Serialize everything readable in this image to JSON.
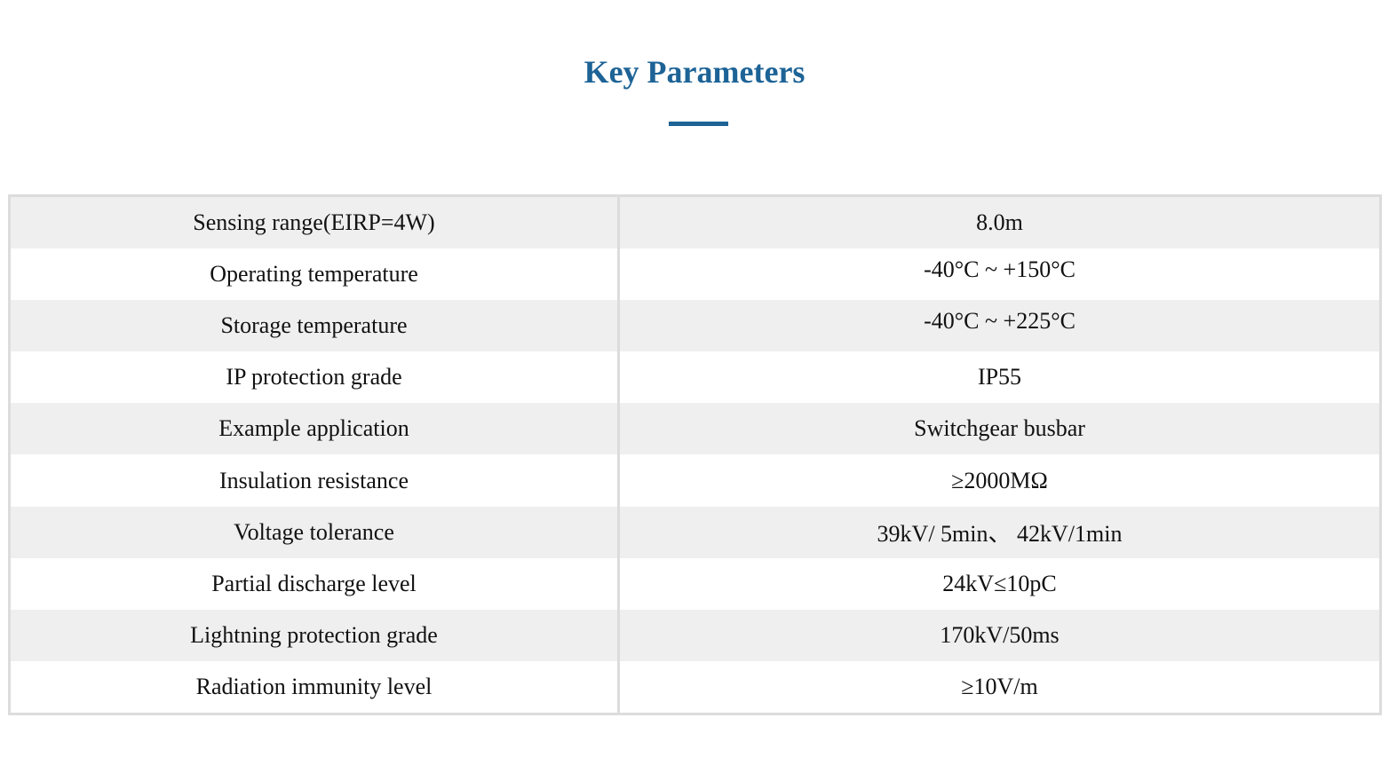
{
  "header": {
    "title": "Key Parameters",
    "accent_color": "#1d6396"
  },
  "table": {
    "border_color": "#dcdcdc",
    "stripe_color": "#efefef",
    "rows": [
      {
        "label": "Sensing range(EIRP=4W)",
        "value": "8.0m"
      },
      {
        "label": "Operating temperature",
        "value": "-40°C ~ +150°C"
      },
      {
        "label": "Storage temperature",
        "value": "-40°C ~ +225°C"
      },
      {
        "label": "IP protection grade",
        "value": "IP55"
      },
      {
        "label": "Example application",
        "value": "Switchgear busbar"
      },
      {
        "label": "Insulation resistance",
        "value": "≥2000ΜΩ"
      },
      {
        "label": "Voltage tolerance",
        "value": "39kV/ 5min、 42kV/1min"
      },
      {
        "label": "Partial discharge level",
        "value": "24kV≤10pC"
      },
      {
        "label": "Lightning protection grade",
        "value": "170kV/50ms"
      },
      {
        "label": "Radiation immunity level",
        "value": "≥10V/m"
      }
    ]
  }
}
